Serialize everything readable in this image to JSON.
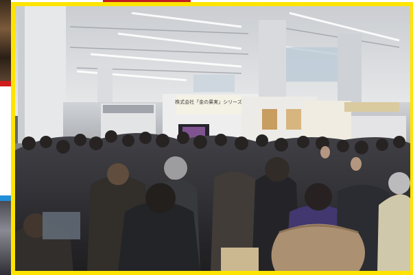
{
  "photo": {
    "subject": "crowded-exhibition-hall",
    "frame_color": "#ffe400",
    "ceiling_color": "#d7d9dc",
    "floor_color": "#8e8f92"
  },
  "left_strip": {
    "accent_red": "#d01b1b",
    "accent_blue": "#1f8fd8"
  },
  "booths": {
    "sign_1": "株式会社「金の果実」シリーズ",
    "sign_2": "",
    "sign_3": ""
  }
}
